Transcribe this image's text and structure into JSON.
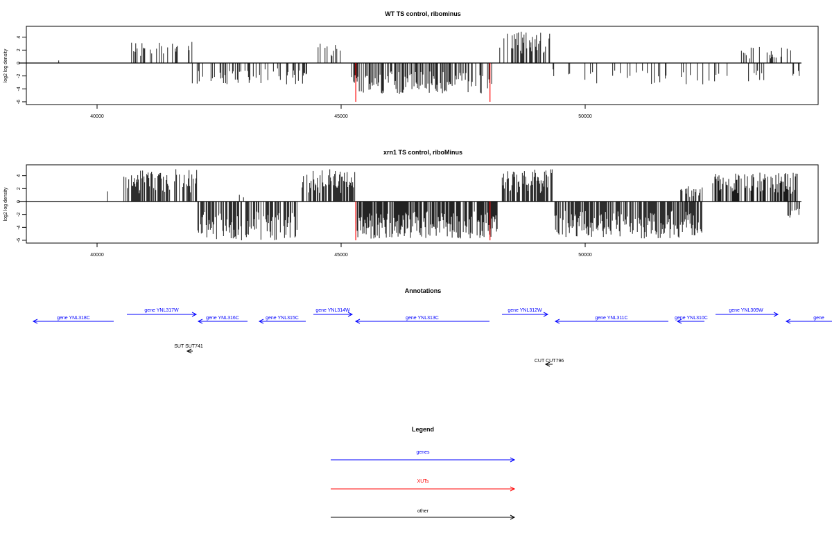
{
  "panels": [
    {
      "title": "WT TS control, ribominus",
      "ylabel": "log2 log density",
      "yticks": [
        "-6",
        "-4",
        "-2",
        "0",
        "2",
        "4"
      ],
      "ytick_values": [
        -6,
        -4,
        -2,
        0,
        2,
        4
      ],
      "xticks": [
        "40000",
        "45000",
        "50000"
      ],
      "xtick_values": [
        40000,
        45000,
        50000
      ]
    },
    {
      "title": "xrn1 TS control, riboMinus",
      "ylabel": "log2 log density",
      "yticks": [
        "-6",
        "-4",
        "-2",
        "0",
        "2",
        "4"
      ],
      "ytick_values": [
        -6,
        -4,
        -2,
        0,
        2,
        4
      ],
      "xticks": [
        "40000",
        "45000",
        "50000"
      ],
      "xtick_values": [
        40000,
        45000,
        50000
      ]
    }
  ],
  "annotations": {
    "title": "Annotations",
    "genes": [
      {
        "label": "gene YNL318C",
        "row": "lower",
        "dir": "left"
      },
      {
        "label": "gene YNL317W",
        "row": "upper",
        "dir": "right"
      },
      {
        "label": "gene YNL316C",
        "row": "lower",
        "dir": "left"
      },
      {
        "label": "gene YNL315C",
        "row": "lower",
        "dir": "left"
      },
      {
        "label": "gene YNL314W",
        "row": "upper",
        "dir": "right"
      },
      {
        "label": "gene YNL313C",
        "row": "lower",
        "dir": "left"
      },
      {
        "label": "gene YNL312W",
        "row": "upper",
        "dir": "right"
      },
      {
        "label": "gene YNL311C",
        "row": "lower",
        "dir": "left"
      },
      {
        "label": "gene YNL310C",
        "row": "lower",
        "dir": "left"
      },
      {
        "label": "gene YNL309W",
        "row": "upper",
        "dir": "right"
      },
      {
        "label": "gene",
        "row": "lower",
        "dir": "left"
      }
    ],
    "other": [
      {
        "label": "SUT SUT741",
        "dir": "left"
      },
      {
        "label": "CUT CUT796",
        "dir": "left"
      }
    ]
  },
  "legend": {
    "title": "Legend",
    "items": [
      {
        "label": "genes",
        "color": "#0000ff"
      },
      {
        "label": "XUTs",
        "color": "#ff0000"
      },
      {
        "label": "other",
        "color": "#000000"
      }
    ]
  },
  "colors": {
    "genes": "#0000ff",
    "xuts": "#ff0000",
    "other": "#000000",
    "axis": "#000000"
  },
  "chart_data": [
    {
      "type": "bar",
      "title": "WT TS control, ribominus",
      "xlabel": "",
      "ylabel": "log2 log density",
      "xlim": [
        38500,
        54500
      ],
      "ylim": [
        -6.2,
        5.5
      ],
      "grid": false,
      "highlight": {
        "color": "#ff0000",
        "x": [
          45300,
          48050
        ],
        "values": [
          -6,
          -6
        ]
      },
      "regions": [
        {
          "start": 39200,
          "end": 39300,
          "sign": 1,
          "max": 1.0,
          "density": 0.2
        },
        {
          "start": 40650,
          "end": 41950,
          "sign": 1,
          "max": 3.3,
          "density": 0.3
        },
        {
          "start": 41950,
          "end": 44300,
          "sign": -1,
          "max": 3.3,
          "density": 0.3
        },
        {
          "start": 44500,
          "end": 45100,
          "sign": 1,
          "max": 3.0,
          "density": 0.2
        },
        {
          "start": 45200,
          "end": 48150,
          "sign": -1,
          "max": 4.8,
          "density": 0.5
        },
        {
          "start": 48250,
          "end": 49300,
          "sign": 1,
          "max": 5.0,
          "density": 0.5
        },
        {
          "start": 49300,
          "end": 53900,
          "sign": -1,
          "max": 3.4,
          "density": 0.12
        },
        {
          "start": 51800,
          "end": 51900,
          "sign": 1,
          "max": 2.0,
          "density": 0.1
        },
        {
          "start": 53200,
          "end": 54300,
          "sign": 1,
          "max": 2.6,
          "density": 0.3
        },
        {
          "start": 54200,
          "end": 54400,
          "sign": -1,
          "max": 2.5,
          "density": 0.3
        }
      ]
    },
    {
      "type": "bar",
      "title": "xrn1 TS control, riboMinus",
      "xlabel": "",
      "ylabel": "log2 log density",
      "xlim": [
        38500,
        54500
      ],
      "ylim": [
        -6.2,
        5.5
      ],
      "grid": false,
      "highlight": {
        "color": "#ff0000",
        "x": [
          45300,
          48050
        ],
        "values": [
          -6,
          -6
        ]
      },
      "regions": [
        {
          "start": 40200,
          "end": 40300,
          "sign": 1,
          "max": 1.8,
          "density": 0.3
        },
        {
          "start": 40550,
          "end": 42050,
          "sign": 1,
          "max": 5.0,
          "density": 0.6
        },
        {
          "start": 42050,
          "end": 44100,
          "sign": -1,
          "max": 6.0,
          "density": 0.7
        },
        {
          "start": 42900,
          "end": 43000,
          "sign": 1,
          "max": 2.6,
          "density": 0.3
        },
        {
          "start": 44200,
          "end": 45300,
          "sign": 1,
          "max": 5.0,
          "density": 0.7
        },
        {
          "start": 45300,
          "end": 48200,
          "sign": -1,
          "max": 5.8,
          "density": 0.8
        },
        {
          "start": 48300,
          "end": 49350,
          "sign": 1,
          "max": 5.0,
          "density": 0.8
        },
        {
          "start": 49350,
          "end": 52400,
          "sign": -1,
          "max": 5.7,
          "density": 0.7
        },
        {
          "start": 51900,
          "end": 52400,
          "sign": 1,
          "max": 2.5,
          "density": 0.4
        },
        {
          "start": 52600,
          "end": 54350,
          "sign": 1,
          "max": 4.5,
          "density": 0.6
        },
        {
          "start": 54150,
          "end": 54400,
          "sign": -1,
          "max": 2.5,
          "density": 0.4
        }
      ]
    }
  ]
}
